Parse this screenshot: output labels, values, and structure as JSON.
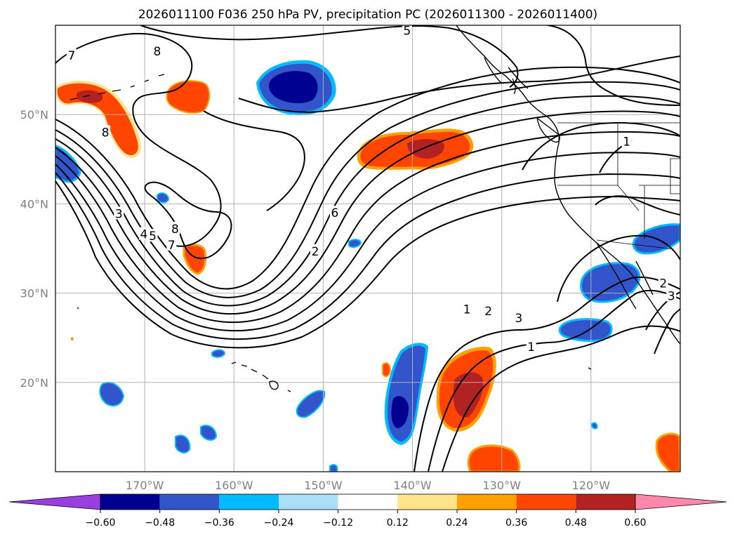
{
  "title": "2026011100 F036 250 hPa PV, precipitation PC (2026011300 - 2026011400)",
  "map": {
    "projection": "lat-lon",
    "lon_range": [
      -180,
      -110
    ],
    "lat_range": [
      10,
      60
    ],
    "lat_ticks": [
      {
        "lat": 50,
        "label": "50°N"
      },
      {
        "lat": 40,
        "label": "40°N"
      },
      {
        "lat": 30,
        "label": "30°N"
      },
      {
        "lat": 20,
        "label": "20°N"
      }
    ],
    "lon_ticks": [
      {
        "lon": -170,
        "label": "170°W"
      },
      {
        "lon": -160,
        "label": "160°W"
      },
      {
        "lon": -150,
        "label": "150°W"
      },
      {
        "lon": -140,
        "label": "140°W"
      },
      {
        "lon": -130,
        "label": "130°W"
      },
      {
        "lon": -120,
        "label": "120°W"
      }
    ],
    "grid_color": "#b0b0b0",
    "coast_color": "#000000"
  },
  "pv_contour_labels": [
    {
      "text": "7",
      "lon": -178.2,
      "lat": 56.6
    },
    {
      "text": "8",
      "lon": -168.6,
      "lat": 57.1
    },
    {
      "text": "5",
      "lon": -140.6,
      "lat": 59.4
    },
    {
      "text": "8",
      "lon": -174.4,
      "lat": 48.0
    },
    {
      "text": "3",
      "lon": -172.9,
      "lat": 38.9
    },
    {
      "text": "4",
      "lon": -170.1,
      "lat": 36.6
    },
    {
      "text": "5",
      "lon": -169.1,
      "lat": 36.4
    },
    {
      "text": "8",
      "lon": -166.6,
      "lat": 37.2
    },
    {
      "text": "7",
      "lon": -167.0,
      "lat": 35.4
    },
    {
      "text": "6",
      "lon": -148.7,
      "lat": 39.0
    },
    {
      "text": "2",
      "lon": -150.9,
      "lat": 34.7
    },
    {
      "text": "1",
      "lon": -116.0,
      "lat": 47.0
    },
    {
      "text": "1",
      "lon": -133.9,
      "lat": 28.2
    },
    {
      "text": "2",
      "lon": -131.5,
      "lat": 28.0
    },
    {
      "text": "3",
      "lon": -128.1,
      "lat": 27.2
    },
    {
      "text": "1",
      "lon": -126.7,
      "lat": 24.0
    },
    {
      "text": "2",
      "lon": -111.9,
      "lat": 31.1
    },
    {
      "text": "3",
      "lon": -111.0,
      "lat": 29.7
    }
  ],
  "colorbar": {
    "extend": "both",
    "levels": [
      -0.72,
      -0.6,
      -0.48,
      -0.36,
      -0.24,
      -0.12,
      0.12,
      0.24,
      0.36,
      0.48,
      0.6,
      0.72
    ],
    "colors": [
      "#9a3ee0",
      "#000090",
      "#3355cc",
      "#00bbff",
      "#abdff8",
      "#ffffff",
      "#ffe48a",
      "#ff9f00",
      "#ff4500",
      "#b22222",
      "#ff88aa"
    ],
    "under_color": "#9a3ee0",
    "over_color": "#ff88aa",
    "tick_labels": [
      "−0.60",
      "−0.48",
      "−0.36",
      "−0.24",
      "−0.12",
      "0.12",
      "0.24",
      "0.36",
      "0.48",
      "0.60"
    ]
  },
  "legend_colors": {
    "pos_light": "#ffe48a",
    "pos_orange": "#ff9f00",
    "pos_red": "#ff4500",
    "pos_dark": "#b22222",
    "neg_cyan": "#00bbff",
    "neg_mid": "#3355cc",
    "neg_dark": "#000090"
  }
}
